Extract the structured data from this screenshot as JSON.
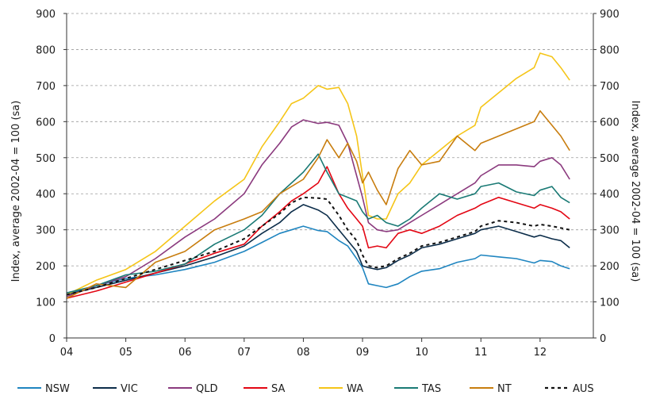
{
  "chart_data": {
    "type": "line",
    "title": "",
    "ylabel_left": "Index, average 2002-04 = 100 (sa)",
    "ylabel_right": "Index, average 2002-04 = 100 (sa)",
    "xlabel": "",
    "x_ticks": [
      "04",
      "05",
      "06",
      "07",
      "08",
      "09",
      "10",
      "11",
      "12"
    ],
    "y_ticks": [
      "0",
      "100",
      "200",
      "300",
      "400",
      "500",
      "600",
      "700",
      "800",
      "900"
    ],
    "xlim": [
      2004.0,
      2012.9
    ],
    "ylim": [
      0,
      900
    ],
    "grid": "horizontal-dashed",
    "legend_position": "bottom",
    "series": [
      {
        "name": "NSW",
        "color": "#1f85c0",
        "dash": "solid",
        "x": [
          2004.0,
          2004.5,
          2005.0,
          2005.5,
          2006.0,
          2006.5,
          2007.0,
          2007.3,
          2007.6,
          2007.8,
          2008.0,
          2008.25,
          2008.4,
          2008.6,
          2008.75,
          2008.9,
          2009.0,
          2009.1,
          2009.25,
          2009.4,
          2009.6,
          2009.8,
          2010.0,
          2010.3,
          2010.6,
          2010.9,
          2011.0,
          2011.3,
          2011.6,
          2011.9,
          2012.0,
          2012.2,
          2012.35,
          2012.5
        ],
        "y": [
          120,
          145,
          165,
          175,
          190,
          210,
          240,
          265,
          290,
          300,
          310,
          298,
          295,
          270,
          255,
          220,
          195,
          150,
          145,
          140,
          150,
          170,
          185,
          192,
          210,
          220,
          230,
          225,
          220,
          208,
          215,
          212,
          200,
          192
        ]
      },
      {
        "name": "VIC",
        "color": "#0c2d4a",
        "dash": "solid",
        "x": [
          2004.0,
          2004.5,
          2005.0,
          2005.5,
          2006.0,
          2006.5,
          2007.0,
          2007.3,
          2007.6,
          2007.8,
          2008.0,
          2008.25,
          2008.4,
          2008.6,
          2008.75,
          2008.9,
          2009.0,
          2009.1,
          2009.25,
          2009.4,
          2009.6,
          2009.8,
          2010.0,
          2010.3,
          2010.6,
          2010.9,
          2011.0,
          2011.3,
          2011.6,
          2011.9,
          2012.0,
          2012.2,
          2012.35,
          2012.5
        ],
        "y": [
          120,
          140,
          160,
          180,
          200,
          225,
          255,
          290,
          320,
          350,
          370,
          355,
          340,
          300,
          270,
          240,
          200,
          195,
          190,
          195,
          215,
          230,
          250,
          260,
          275,
          290,
          300,
          310,
          295,
          280,
          285,
          275,
          270,
          250
        ]
      },
      {
        "name": "QLD",
        "color": "#8b3a7e",
        "dash": "solid",
        "x": [
          2004.0,
          2004.5,
          2005.0,
          2005.5,
          2006.0,
          2006.5,
          2007.0,
          2007.3,
          2007.6,
          2007.8,
          2008.0,
          2008.25,
          2008.4,
          2008.6,
          2008.75,
          2008.9,
          2009.0,
          2009.1,
          2009.25,
          2009.4,
          2009.6,
          2009.8,
          2010.0,
          2010.3,
          2010.6,
          2010.9,
          2011.0,
          2011.3,
          2011.6,
          2011.9,
          2012.0,
          2012.2,
          2012.35,
          2012.5
        ],
        "y": [
          115,
          145,
          170,
          220,
          280,
          330,
          400,
          480,
          540,
          585,
          605,
          595,
          598,
          590,
          540,
          450,
          390,
          320,
          300,
          295,
          300,
          320,
          340,
          370,
          400,
          430,
          450,
          480,
          480,
          475,
          490,
          500,
          480,
          440
        ]
      },
      {
        "name": "SA",
        "color": "#e30613",
        "dash": "solid",
        "x": [
          2004.0,
          2004.5,
          2005.0,
          2005.5,
          2006.0,
          2006.5,
          2007.0,
          2007.3,
          2007.6,
          2007.8,
          2008.0,
          2008.25,
          2008.4,
          2008.6,
          2008.75,
          2008.9,
          2009.0,
          2009.1,
          2009.25,
          2009.4,
          2009.6,
          2009.8,
          2010.0,
          2010.3,
          2010.6,
          2010.9,
          2011.0,
          2011.3,
          2011.6,
          2011.9,
          2012.0,
          2012.2,
          2012.35,
          2012.5
        ],
        "y": [
          110,
          130,
          155,
          180,
          205,
          235,
          260,
          310,
          350,
          380,
          400,
          430,
          475,
          400,
          360,
          330,
          310,
          250,
          255,
          250,
          290,
          300,
          290,
          310,
          340,
          360,
          370,
          390,
          375,
          360,
          370,
          360,
          350,
          330
        ]
      },
      {
        "name": "WA",
        "color": "#f5c518",
        "dash": "solid",
        "x": [
          2004.0,
          2004.5,
          2005.0,
          2005.5,
          2006.0,
          2006.5,
          2007.0,
          2007.3,
          2007.6,
          2007.8,
          2008.0,
          2008.25,
          2008.4,
          2008.6,
          2008.75,
          2008.9,
          2009.0,
          2009.1,
          2009.25,
          2009.4,
          2009.6,
          2009.8,
          2010.0,
          2010.3,
          2010.6,
          2010.9,
          2011.0,
          2011.3,
          2011.6,
          2011.9,
          2012.0,
          2012.2,
          2012.35,
          2012.5
        ],
        "y": [
          120,
          160,
          190,
          240,
          310,
          380,
          440,
          530,
          600,
          650,
          665,
          700,
          690,
          695,
          650,
          560,
          450,
          340,
          330,
          330,
          400,
          430,
          480,
          520,
          560,
          590,
          640,
          680,
          720,
          750,
          790,
          780,
          750,
          715
        ]
      },
      {
        "name": "TAS",
        "color": "#1a7a75",
        "dash": "solid",
        "x": [
          2004.0,
          2004.5,
          2005.0,
          2005.5,
          2006.0,
          2006.5,
          2007.0,
          2007.3,
          2007.6,
          2007.8,
          2008.0,
          2008.25,
          2008.4,
          2008.6,
          2008.75,
          2008.9,
          2009.0,
          2009.1,
          2009.25,
          2009.4,
          2009.6,
          2009.8,
          2010.0,
          2010.3,
          2010.6,
          2010.9,
          2011.0,
          2011.3,
          2011.6,
          2011.9,
          2012.0,
          2012.2,
          2012.35,
          2012.5
        ],
        "y": [
          125,
          145,
          175,
          185,
          205,
          260,
          300,
          340,
          400,
          430,
          460,
          510,
          460,
          400,
          390,
          380,
          350,
          330,
          340,
          320,
          310,
          330,
          360,
          400,
          385,
          400,
          420,
          430,
          405,
          395,
          410,
          420,
          390,
          375
        ]
      },
      {
        "name": "NT",
        "color": "#c87d0e",
        "dash": "solid",
        "x": [
          2004.0,
          2004.5,
          2005.0,
          2005.5,
          2006.0,
          2006.5,
          2007.0,
          2007.3,
          2007.6,
          2007.8,
          2008.0,
          2008.25,
          2008.4,
          2008.6,
          2008.75,
          2008.9,
          2009.0,
          2009.1,
          2009.25,
          2009.4,
          2009.6,
          2009.8,
          2010.0,
          2010.3,
          2010.6,
          2010.9,
          2011.0,
          2011.3,
          2011.6,
          2011.9,
          2012.0,
          2012.2,
          2012.35,
          2012.5
        ],
        "y": [
          110,
          150,
          140,
          210,
          240,
          300,
          330,
          350,
          400,
          420,
          440,
          500,
          550,
          500,
          540,
          490,
          430,
          460,
          410,
          370,
          470,
          520,
          480,
          490,
          560,
          520,
          540,
          560,
          580,
          600,
          630,
          590,
          560,
          520
        ]
      },
      {
        "name": "AUS",
        "color": "#111111",
        "dash": "dashed",
        "x": [
          2004.0,
          2004.5,
          2005.0,
          2005.5,
          2006.0,
          2006.5,
          2007.0,
          2007.3,
          2007.6,
          2007.8,
          2008.0,
          2008.25,
          2008.4,
          2008.6,
          2008.75,
          2008.9,
          2009.0,
          2009.1,
          2009.25,
          2009.4,
          2009.6,
          2009.8,
          2010.0,
          2010.3,
          2010.6,
          2010.9,
          2011.0,
          2011.3,
          2011.6,
          2011.9,
          2012.0,
          2012.2,
          2012.35,
          2012.5
        ],
        "y": [
          120,
          140,
          165,
          190,
          215,
          240,
          275,
          310,
          345,
          375,
          390,
          388,
          385,
          340,
          300,
          270,
          230,
          200,
          195,
          200,
          220,
          235,
          255,
          265,
          280,
          295,
          310,
          325,
          320,
          310,
          315,
          310,
          305,
          300
        ]
      }
    ]
  }
}
